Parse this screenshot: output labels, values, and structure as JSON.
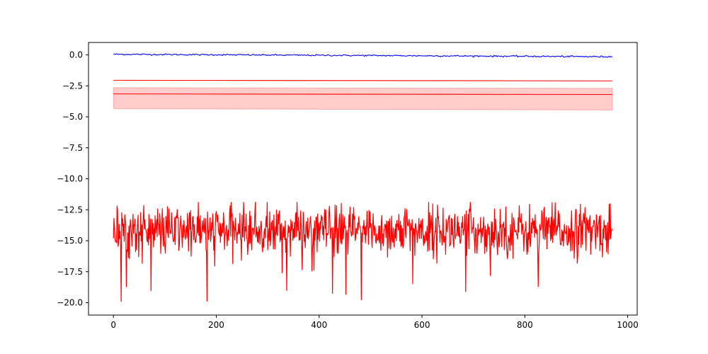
{
  "chart_data": {
    "type": "line",
    "title": "",
    "xlabel": "",
    "ylabel": "",
    "xlim": [
      -48.5,
      1018.5
    ],
    "ylim": [
      -21.0,
      1.0
    ],
    "grid": false,
    "legend": "none",
    "x_ticks": [
      0,
      200,
      400,
      600,
      800,
      1000
    ],
    "x_tick_labels": [
      "0",
      "200",
      "400",
      "600",
      "800",
      "1000"
    ],
    "y_ticks": [
      0.0,
      -2.5,
      -5.0,
      -7.5,
      -10.0,
      -12.5,
      -15.0,
      -17.5,
      -20.0
    ],
    "y_tick_labels": [
      "0.0",
      "−2.5",
      "−5.0",
      "−7.5",
      "−10.0",
      "−12.5",
      "−15.0",
      "−17.5",
      "−20.0"
    ],
    "x_range": [
      0,
      970
    ],
    "series": [
      {
        "color": "#0000ff",
        "start": 0.05,
        "end": -0.15,
        "noise": 0.03
      },
      {
        "color": "#ff0000",
        "start": -2.05,
        "end": -2.1
      },
      {
        "color": "#ff0000",
        "start": -3.15,
        "end": -3.2
      },
      {
        "color": "#ff0000",
        "mean": -14.2,
        "min": -20.1,
        "max": -11.9,
        "noise_sd": 1.0
      }
    ],
    "band": {
      "color": "#ff0000",
      "opacity": 0.2,
      "upper": [
        -2.65,
        -2.7
      ],
      "lower": [
        -4.35,
        -4.45
      ]
    }
  }
}
